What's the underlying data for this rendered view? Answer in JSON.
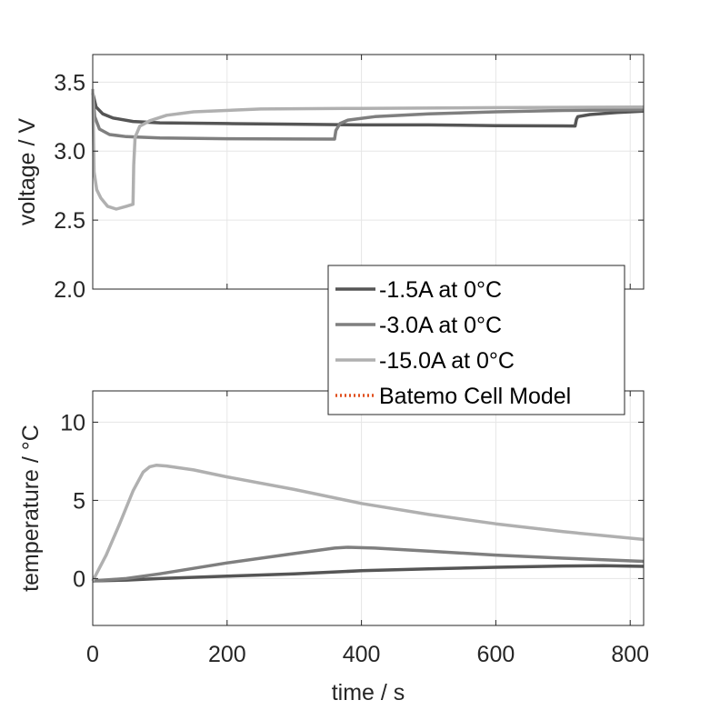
{
  "chart_data": [
    {
      "type": "line",
      "ylabel": "voltage / V",
      "xlim": [
        0,
        820
      ],
      "ylim": [
        2.0,
        3.7
      ],
      "xticks": [
        0,
        200,
        400,
        600,
        800
      ],
      "yticks": [
        2.0,
        2.5,
        3.0,
        3.5
      ],
      "ytick_labels": [
        "2.0",
        "2.5",
        "3.0",
        "3.5"
      ],
      "grid": true,
      "series": [
        {
          "name": "-1.5A at 0°C",
          "color": "#555555",
          "points": [
            [
              0,
              3.42
            ],
            [
              5,
              3.32
            ],
            [
              15,
              3.27
            ],
            [
              30,
              3.24
            ],
            [
              60,
              3.215
            ],
            [
              100,
              3.205
            ],
            [
              200,
              3.2
            ],
            [
              300,
              3.195
            ],
            [
              400,
              3.19
            ],
            [
              500,
              3.19
            ],
            [
              600,
              3.185
            ],
            [
              700,
              3.183
            ],
            [
              718,
              3.182
            ],
            [
              720,
              3.23
            ],
            [
              722,
              3.25
            ],
            [
              740,
              3.265
            ],
            [
              780,
              3.28
            ],
            [
              820,
              3.29
            ]
          ]
        },
        {
          "name": "-3.0A at 0°C",
          "color": "#7f7f7f",
          "points": [
            [
              0,
              3.42
            ],
            [
              3,
              3.25
            ],
            [
              10,
              3.16
            ],
            [
              25,
              3.12
            ],
            [
              50,
              3.105
            ],
            [
              100,
              3.095
            ],
            [
              200,
              3.09
            ],
            [
              300,
              3.088
            ],
            [
              360,
              3.087
            ],
            [
              362,
              3.15
            ],
            [
              368,
              3.2
            ],
            [
              380,
              3.225
            ],
            [
              420,
              3.25
            ],
            [
              500,
              3.27
            ],
            [
              600,
              3.285
            ],
            [
              700,
              3.295
            ],
            [
              820,
              3.3
            ]
          ]
        },
        {
          "name": "-15.0A at 0°C",
          "color": "#b0b0b0",
          "points": [
            [
              0,
              3.45
            ],
            [
              2,
              2.85
            ],
            [
              6,
              2.72
            ],
            [
              12,
              2.66
            ],
            [
              22,
              2.6
            ],
            [
              35,
              2.58
            ],
            [
              50,
              2.6
            ],
            [
              60,
              2.615
            ],
            [
              61,
              2.9
            ],
            [
              63,
              3.1
            ],
            [
              70,
              3.18
            ],
            [
              85,
              3.22
            ],
            [
              110,
              3.26
            ],
            [
              150,
              3.285
            ],
            [
              250,
              3.305
            ],
            [
              400,
              3.31
            ],
            [
              600,
              3.315
            ],
            [
              820,
              3.32
            ]
          ]
        },
        {
          "name": "Batemo Cell Model",
          "color": "#e1501f",
          "style": "dotted",
          "points": []
        }
      ],
      "legend": {
        "placement": "bottom-right",
        "entries": [
          "-1.5A at 0°C",
          "-3.0A at 0°C",
          "-15.0A at 0°C",
          "Batemo Cell Model"
        ]
      }
    },
    {
      "type": "line",
      "xlabel": "time / s",
      "ylabel": "temperature / °C",
      "xlim": [
        0,
        820
      ],
      "ylim": [
        -3,
        12
      ],
      "xticks": [
        0,
        200,
        400,
        600,
        800
      ],
      "yticks": [
        0,
        5,
        10
      ],
      "ytick_labels": [
        "0",
        "5",
        "10"
      ],
      "grid": true,
      "series": [
        {
          "name": "-1.5A at 0°C",
          "color": "#555555",
          "points": [
            [
              0,
              -0.15
            ],
            [
              50,
              -0.1
            ],
            [
              100,
              0
            ],
            [
              200,
              0.15
            ],
            [
              300,
              0.3
            ],
            [
              400,
              0.5
            ],
            [
              500,
              0.62
            ],
            [
              600,
              0.72
            ],
            [
              700,
              0.8
            ],
            [
              760,
              0.82
            ],
            [
              820,
              0.78
            ]
          ]
        },
        {
          "name": "-3.0A at 0°C",
          "color": "#7f7f7f",
          "points": [
            [
              0,
              -0.15
            ],
            [
              50,
              0
            ],
            [
              100,
              0.3
            ],
            [
              200,
              1.0
            ],
            [
              300,
              1.6
            ],
            [
              360,
              1.95
            ],
            [
              380,
              2.0
            ],
            [
              420,
              1.95
            ],
            [
              500,
              1.75
            ],
            [
              600,
              1.5
            ],
            [
              700,
              1.3
            ],
            [
              820,
              1.1
            ]
          ]
        },
        {
          "name": "-15.0A at 0°C",
          "color": "#b0b0b0",
          "points": [
            [
              0,
              -0.15
            ],
            [
              20,
              1.5
            ],
            [
              40,
              3.5
            ],
            [
              60,
              5.6
            ],
            [
              75,
              6.8
            ],
            [
              85,
              7.15
            ],
            [
              95,
              7.25
            ],
            [
              110,
              7.2
            ],
            [
              150,
              6.95
            ],
            [
              200,
              6.5
            ],
            [
              300,
              5.7
            ],
            [
              400,
              4.8
            ],
            [
              500,
              4.1
            ],
            [
              600,
              3.5
            ],
            [
              700,
              3.0
            ],
            [
              820,
              2.5
            ]
          ]
        }
      ]
    }
  ]
}
